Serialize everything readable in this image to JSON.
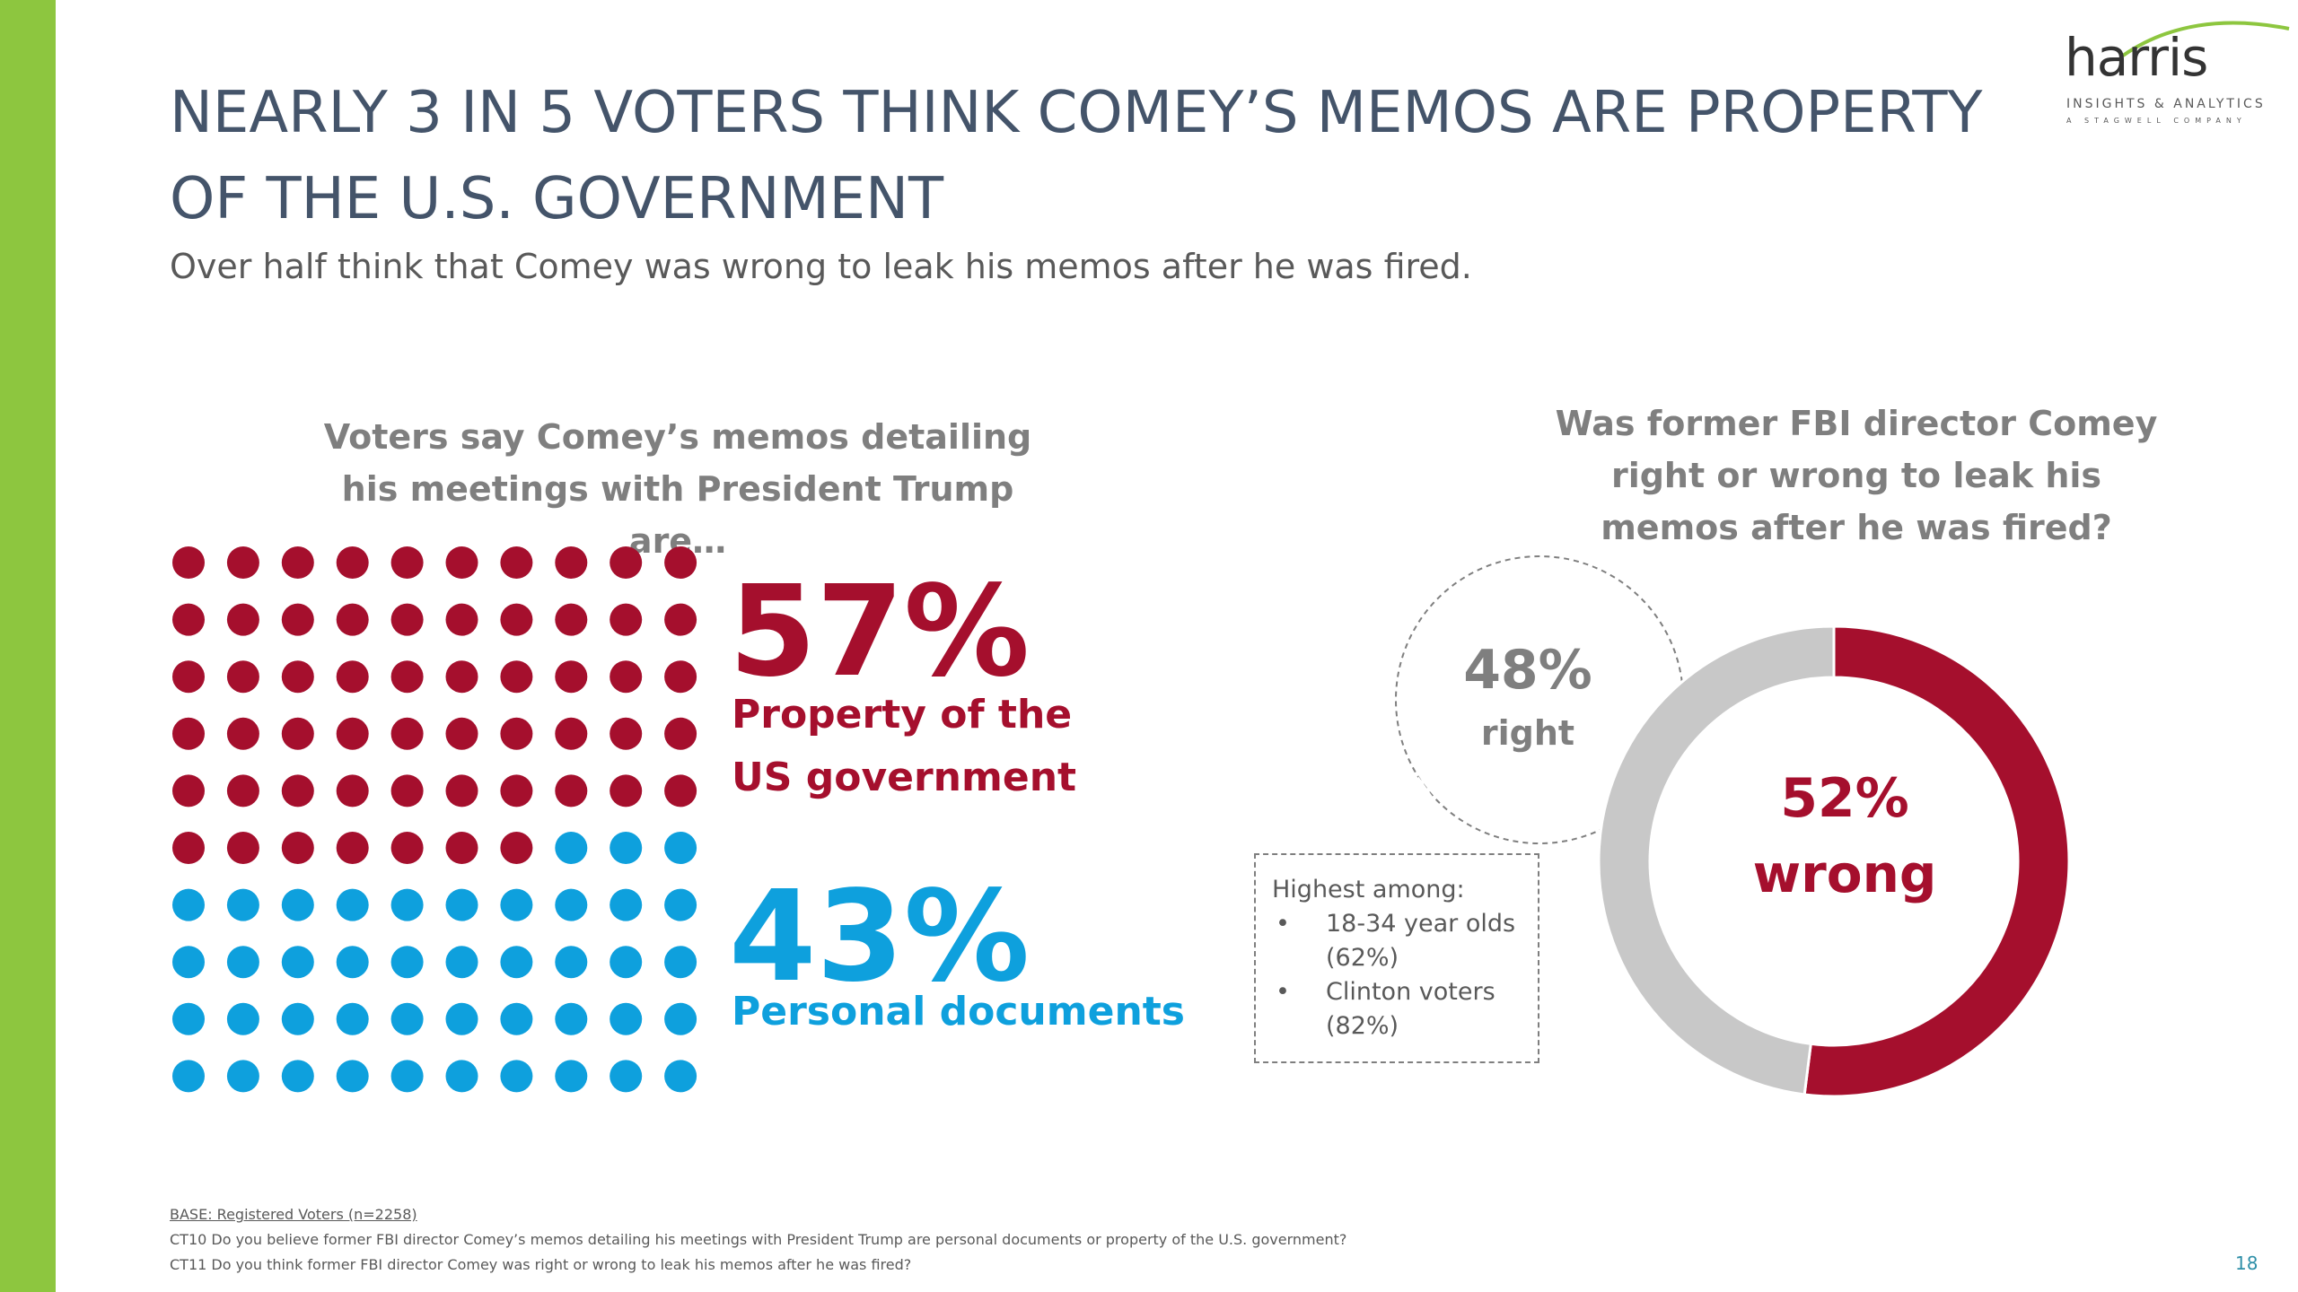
{
  "header": {
    "title": "NEARLY 3 IN 5 VOTERS THINK COMEY’S MEMOS ARE PROPERTY OF THE U.S. GOVERNMENT",
    "subtitle": "Over half think that Comey was wrong to leak his memos after he was fired.",
    "logo": {
      "name": "harris",
      "tagline": "INSIGHTS & ANALYTICS",
      "company": "A STAGWELL COMPANY"
    }
  },
  "chart_data": [
    {
      "type": "waffle",
      "title": "Voters say Comey’s memos detailing his meetings with President Trump are…",
      "categories": [
        "Property of the US government",
        "Personal documents"
      ],
      "values": [
        57,
        43
      ],
      "value_labels": [
        "57%",
        "43%"
      ],
      "colors": [
        "#a50f2d",
        "#0ea0dd"
      ]
    },
    {
      "type": "donut",
      "title": "Was former FBI director Comey right or wrong to leak his memos after he was fired?",
      "categories": [
        "right",
        "wrong"
      ],
      "values": [
        48,
        52
      ],
      "value_labels": [
        "48%",
        "52%"
      ],
      "colors": [
        "#c8c8c8",
        "#a50f2d"
      ],
      "callout": {
        "heading": "Highest among:",
        "items": [
          "18-34 year olds (62%)",
          "Clinton voters (82%)"
        ]
      }
    }
  ],
  "footnotes": {
    "base": "BASE: Registered Voters (n=2258)",
    "questions": [
      "CT10 Do you believe former FBI director Comey’s memos detailing his meetings with President Trump are personal documents or property of the U.S. government?",
      "CT11 Do you think former FBI director Comey was right or wrong to leak his memos after he was fired?"
    ]
  },
  "page_number": "18"
}
